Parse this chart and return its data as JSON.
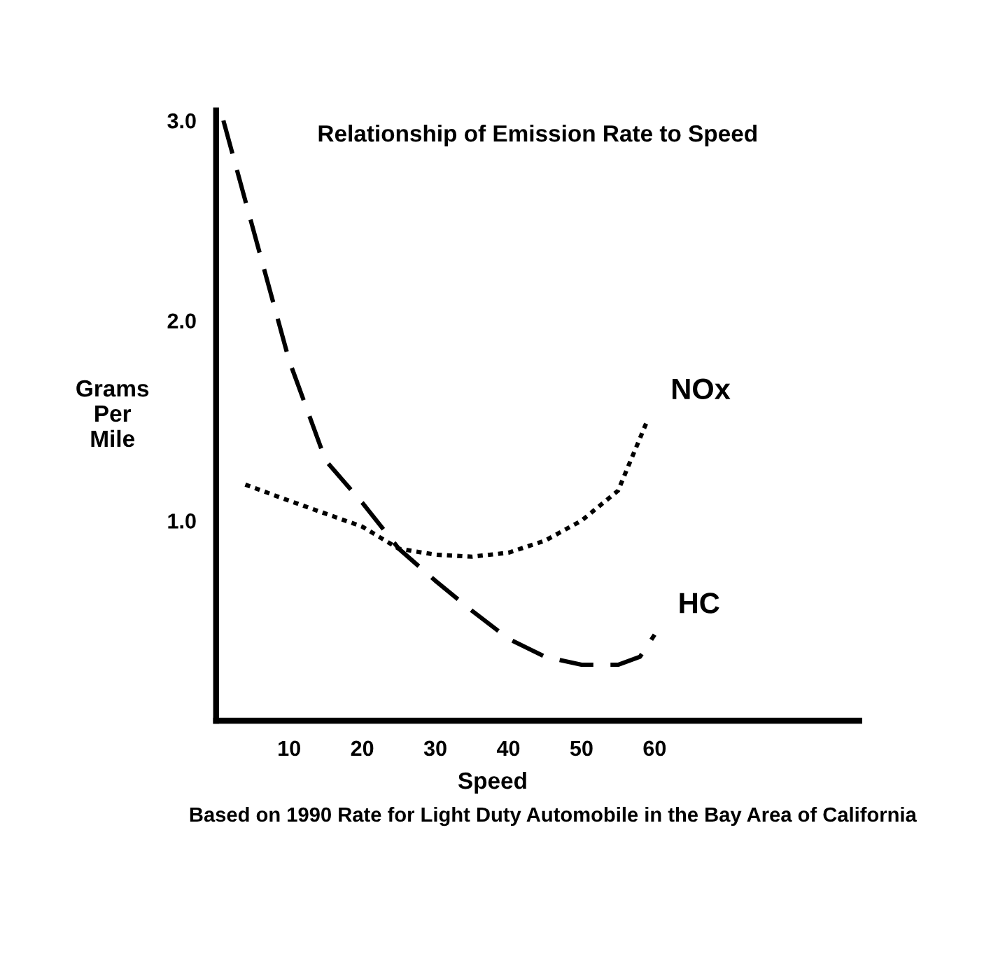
{
  "chart_data": {
    "type": "line",
    "title": "Relationship of Emission Rate to Speed",
    "xlabel": "Speed",
    "ylabel": "Grams\nPer\nMile",
    "annotations": [
      "Based on 1990 Rate for Light Duty Automobile in the Bay Area of California"
    ],
    "series": [
      {
        "name": "NOx",
        "color": "#000000",
        "line_style": "dotted",
        "x": [
          4,
          10,
          20,
          25,
          30,
          35,
          40,
          45,
          50,
          55,
          59
        ],
        "values": [
          1.18,
          1.1,
          0.97,
          0.86,
          0.83,
          0.82,
          0.84,
          0.9,
          1.0,
          1.15,
          1.5
        ]
      },
      {
        "name": "HC",
        "color": "#000000",
        "line_style": "dashed",
        "x": [
          1,
          10,
          15,
          20,
          25,
          30,
          35,
          40,
          45,
          50,
          55,
          58,
          60
        ],
        "values": [
          3.0,
          1.8,
          1.3,
          1.09,
          0.86,
          0.7,
          0.55,
          0.41,
          0.32,
          0.28,
          0.28,
          0.32,
          0.43
        ]
      }
    ],
    "xlim": [
      0,
      88
    ],
    "ylim": [
      0,
      3.05
    ],
    "xticks": [
      10,
      20,
      30,
      40,
      50,
      60
    ],
    "yticks": [
      {
        "value": 1,
        "label": "1.0"
      },
      {
        "value": 2,
        "label": "2.0"
      },
      {
        "value": 3,
        "label": "3.0"
      }
    ],
    "grid": false,
    "legend": false,
    "marker": "none"
  }
}
